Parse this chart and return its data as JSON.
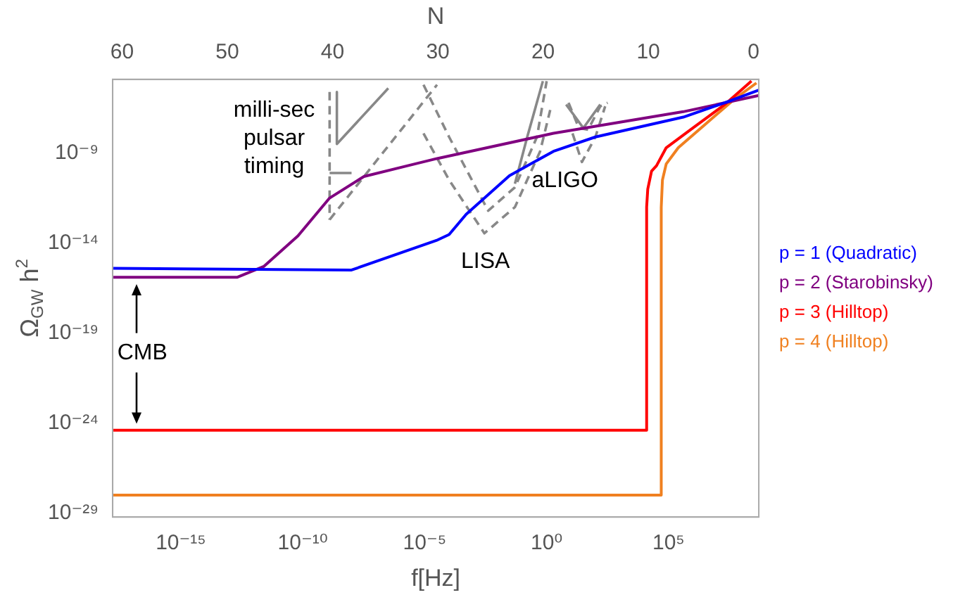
{
  "chart_data": {
    "type": "line",
    "xlabel": "f[Hz]",
    "ylabel": "Ω$_{GW}$ h$^{2}$",
    "x2label": "N",
    "log": "xy",
    "grid": false,
    "legend": "right",
    "xlim": [
      1.6e-18,
      500000000.0
    ],
    "xticks": [
      {
        "value": 1e-15,
        "label": "10⁻¹⁵"
      },
      {
        "value": 1e-10,
        "label": "10⁻¹⁰"
      },
      {
        "value": 1e-05,
        "label": "10⁻⁵"
      },
      {
        "value": 1,
        "label": "10⁰"
      },
      {
        "value": 100000.0,
        "label": "10⁵"
      }
    ],
    "ylim": [
      6.3e-30,
      1.26e-05
    ],
    "yticks": [
      {
        "value": 1e-29,
        "label": "10⁻²⁹"
      },
      {
        "value": 1e-24,
        "label": "10⁻²⁴"
      },
      {
        "value": 1e-19,
        "label": "10⁻¹⁹"
      },
      {
        "value": 1e-14,
        "label": "10⁻¹⁴"
      },
      {
        "value": 1e-09,
        "label": "10⁻⁹"
      }
    ],
    "x2lim": [
      60.9,
      -0.5
    ],
    "x2ticks": [
      60,
      50,
      40,
      30,
      20,
      10,
      0
    ],
    "annotations": [
      "milli-sec pulsar timing",
      "LISA",
      "aLIGO",
      "CMB"
    ],
    "series": [
      {
        "name": "p = 1 (Quadratic)",
        "color": "#0000ff",
        "x": [
          1.6e-18,
          1e-12,
          1e-08,
          3e-05,
          0.0001,
          0.0005,
          0.03,
          1.9,
          100,
          400000.0,
          20000000.0,
          500000000.0
        ],
        "values": [
          4e-16,
          3.5e-16,
          3.2e-16,
          1.4e-14,
          3e-14,
          4e-13,
          5.6e-11,
          1.26e-09,
          7.9e-09,
          1e-07,
          6.3e-07,
          3.2e-06
        ]
      },
      {
        "name": "p = 2 (Starobinsky)",
        "color": "#800080",
        "x": [
          1.6e-18,
          2e-13,
          2.5e-12,
          6.3e-11,
          1.26e-09,
          3.2e-08,
          2e-06,
          3.2e-05,
          1.9,
          400000.0,
          500000000.0
        ],
        "values": [
          1.26e-16,
          1.26e-16,
          5e-16,
          2.5e-14,
          3.2e-12,
          5e-11,
          2e-10,
          5e-10,
          1.26e-08,
          2e-07,
          1.6e-06
        ]
      },
      {
        "name": "p = 3 (Hilltop)",
        "color": "#ff0000",
        "x": [
          1.6e-18,
          12600.0,
          12600.0,
          14000.0,
          20000.0,
          32000.0,
          80000.0,
          1000000.0,
          20000000.0,
          250000000.0
        ],
        "values": [
          4e-25,
          4e-25,
          1e-12,
          1e-11,
          1e-10,
          2e-10,
          2e-09,
          2.5e-08,
          5e-07,
          1e-05
        ]
      },
      {
        "name": "p = 4 (Hilltop)",
        "color": "#f08020",
        "x": [
          1.6e-18,
          50000.0,
          50000.0,
          56000.0,
          80000.0,
          250000.0,
          3200000.0,
          50000000.0,
          400000000.0
        ],
        "values": [
          1e-28,
          1e-28,
          1e-12,
          3.2e-11,
          2.5e-10,
          2e-09,
          4e-08,
          1e-06,
          7.9e-06
        ]
      },
      {
        "color": "#888888",
        "line_style": "dashed",
        "x": [
          1.26e-09,
          1.26e-09
        ],
        "values": [
          2.5e-06,
          2e-13
        ]
      },
      {
        "color": "#888888",
        "line_style": "dashed",
        "x": [
          1.26e-09,
          3.2e-05
        ],
        "values": [
          2e-13,
          6.3e-06
        ]
      },
      {
        "color": "#888888",
        "line_style": "solid",
        "x": [
          2.5e-09,
          2.5e-09,
          3.2e-07
        ],
        "values": [
          2.5e-06,
          3.2e-09,
          4e-06
        ]
      },
      {
        "color": "#888888",
        "line_style": "solid",
        "x": [
          1.26e-09,
          1e-08
        ],
        "values": [
          7.9e-11,
          7.9e-11
        ]
      },
      {
        "color": "#888888",
        "line_style": "dashed",
        "x": [
          8.9e-06,
          0.0001,
          0.004,
          0.05,
          0.4,
          1
        ],
        "values": [
          6.3e-06,
          7.9e-09,
          6.3e-13,
          1.26e-11,
          7.9e-09,
          1e-05
        ]
      },
      {
        "color": "#888888",
        "line_style": "dashed",
        "x": [
          8.9e-06,
          0.0001,
          0.0028,
          0.05,
          0.54,
          1.4
        ],
        "values": [
          1.26e-08,
          3.2e-11,
          3.5e-14,
          1e-12,
          1.26e-09,
          2.5e-07
        ]
      },
      {
        "color": "#888888",
        "line_style": "solid",
        "x": [
          0.05,
          0.16,
          0.7
        ],
        "values": [
          2e-11,
          7.9e-09,
          1e-05
        ]
      },
      {
        "color": "#888888",
        "line_style": "dashed",
        "x": [
          7.9,
          21,
          50,
          158,
          316
        ],
        "values": [
          6.3e-07,
          2.5e-08,
          2e-08,
          4e-07,
          6.3e-07
        ]
      },
      {
        "color": "#888888",
        "line_style": "dashed",
        "x": [
          11.5,
          28,
          100,
          251
        ],
        "values": [
          1.26e-08,
          3.2e-10,
          7.9e-09,
          4e-07
        ]
      },
      {
        "color": "#888888",
        "line_style": "solid",
        "x": [
          6.3,
          32,
          158
        ],
        "values": [
          5e-07,
          2.5e-08,
          5e-07
        ]
      }
    ]
  }
}
